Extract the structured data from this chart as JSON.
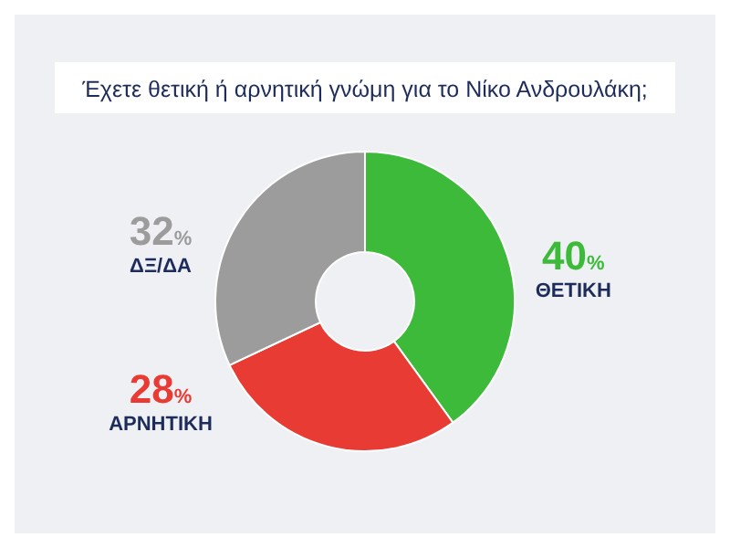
{
  "chart_data": {
    "type": "donut",
    "title": "Έχετε θετική ή αρνητική γνώμη για το Νίκο Ανδρουλάκη;",
    "categories": [
      "ΘΕΤΙΚΗ",
      "ΑΡΝΗΤΙΚΗ",
      "ΔΞ/ΔΑ"
    ],
    "values": [
      40,
      28,
      32
    ],
    "colors": [
      "#3dba3a",
      "#e83b34",
      "#9c9c9c"
    ],
    "value_labels": [
      "40%",
      "28%",
      "32%"
    ]
  }
}
